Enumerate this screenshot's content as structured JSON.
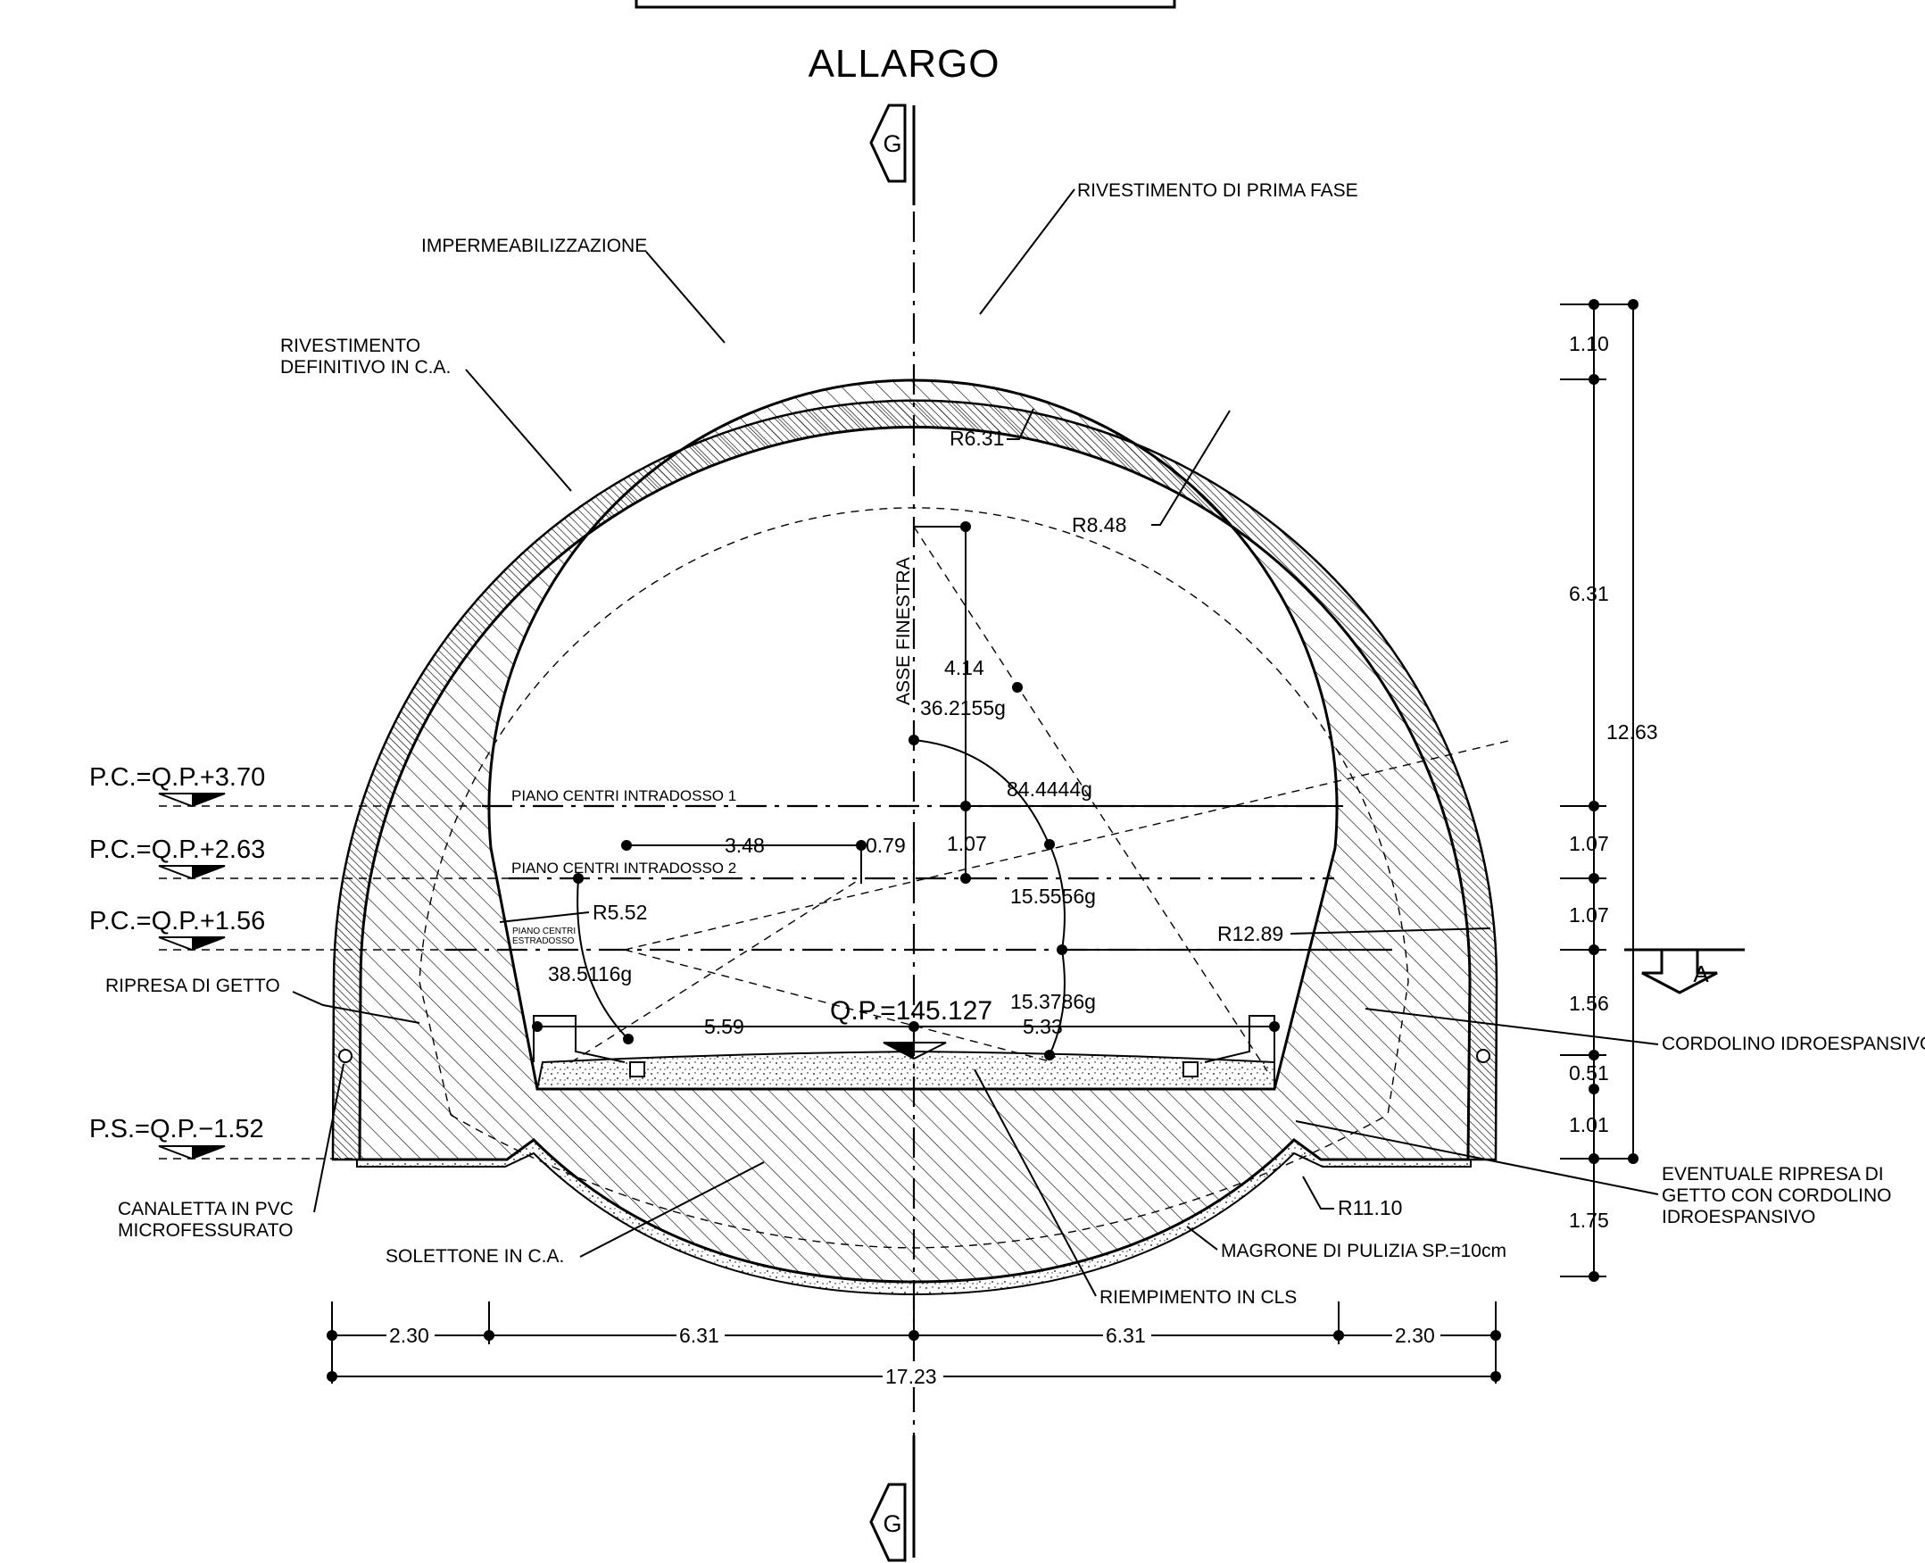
{
  "title": "ALLARGO",
  "section_marker": "G",
  "section_marker_right": "A",
  "labels": {
    "rivestimento_prima_fase": "RIVESTIMENTO  DI  PRIMA  FASE",
    "impermeabilizzazione": "IMPERMEABILIZZAZIONE",
    "rivestimento_definitivo_1": "RIVESTIMENTO",
    "rivestimento_definitivo_2": "DEFINITIVO  IN  C.A.",
    "asse_finestra": "ASSE  FINESTRA",
    "piano_centri_1": "PIANO  CENTRI  INTRADOSSO  1",
    "piano_centri_2": "PIANO  CENTRI  INTRADOSSO  2",
    "piano_centri_estradosso_1": "PIANO CENTRI",
    "piano_centri_estradosso_2": "ESTRADOSSO",
    "ripresa_di_getto": "RIPRESA  DI  GETTO",
    "canaletta_1": "CANALETTA  IN  PVC",
    "canaletta_2": "MICROFESSURATO",
    "solettone": "SOLETTONE  IN  C.A.",
    "riempimento": "RIEMPIMENTO  IN  CLS",
    "magrone": "MAGRONE  DI  PULIZIA  SP.=10cm",
    "cordolino": "CORDOLINO  IDROESPANSIVO",
    "eventuale_1": "EVENTUALE  RIPRESA  DI",
    "eventuale_2": "GETTO  CON  CORDOLINO",
    "eventuale_3": "IDROESPANSIVO",
    "qp": "Q.P.=145.127"
  },
  "levels": [
    "P.C.=Q.P.+3.70",
    "P.C.=Q.P.+2.63",
    "P.C.=Q.P.+1.56",
    "P.S.=Q.P.−1.52"
  ],
  "radii": {
    "r_intrados_crown": "R6.31",
    "r_extrados_crown": "R8.48",
    "r_intrados_side": "R5.52",
    "r_extrados_side": "R12.89",
    "r_invert": "R11.10"
  },
  "angles": {
    "a1": "36.2155g",
    "a2": "84.4444g",
    "a3": "15.5556g",
    "a4": "38.5116g",
    "a5": "15.3786g"
  },
  "inner_dims": {
    "d414": "4.14",
    "d348": "3.48",
    "d079": "0.79",
    "d107": "1.07",
    "d559": "5.59",
    "d533": "5.33"
  },
  "right_dims": {
    "d110": "1.10",
    "d631": "6.31",
    "d1263": "12.63",
    "d107a": "1.07",
    "d107b": "1.07",
    "d156": "1.56",
    "d051": "0.51",
    "d101": "1.01",
    "d175": "1.75"
  },
  "bottom_dims": {
    "b230a": "2.30",
    "b631a": "6.31",
    "b631b": "6.31",
    "b230b": "2.30",
    "b1723": "17.23"
  }
}
